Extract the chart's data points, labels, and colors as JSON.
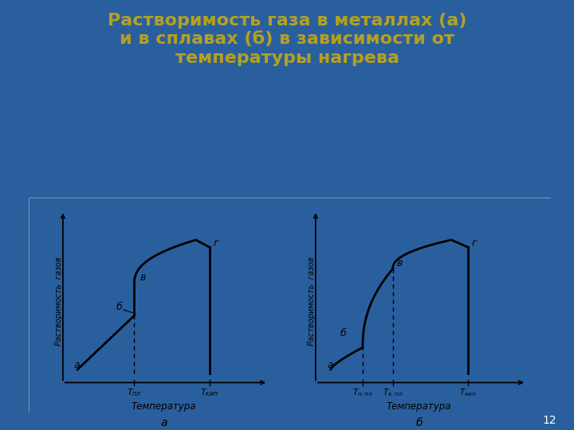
{
  "title_line1": "Растворимость газа в металлах (а)",
  "title_line2": "и в сплавах (б) в зависимости от",
  "title_line3": "температуры нагрева",
  "title_color": "#b5a020",
  "bg_color": "#2a5f9e",
  "slide_number": "12"
}
